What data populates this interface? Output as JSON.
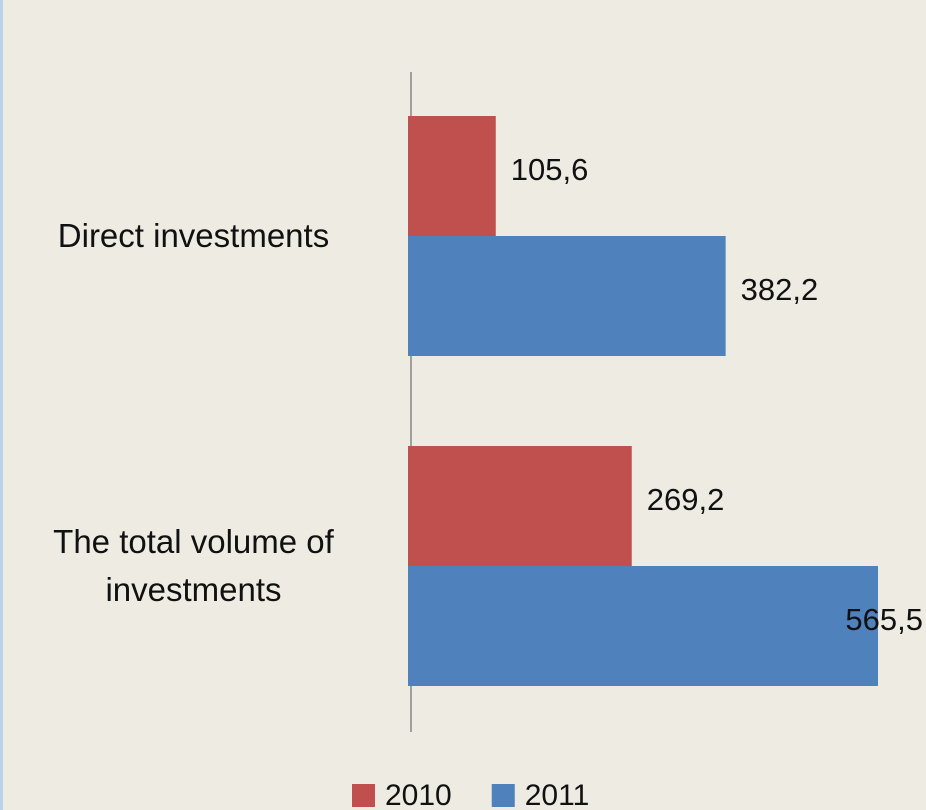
{
  "chart_data": {
    "type": "hbar",
    "categories": [
      "Direct investments",
      "The total volume of investments"
    ],
    "series": [
      {
        "name": "2010",
        "color": "#c0504d",
        "values": [
          105.6,
          269.2
        ],
        "value_labels": [
          "105,6",
          "269,2"
        ]
      },
      {
        "name": "2011",
        "color": "#4f81bd",
        "values": [
          382.2,
          565.5
        ],
        "value_labels": [
          "382,2",
          "565,5"
        ]
      }
    ],
    "legend": "bottom"
  }
}
